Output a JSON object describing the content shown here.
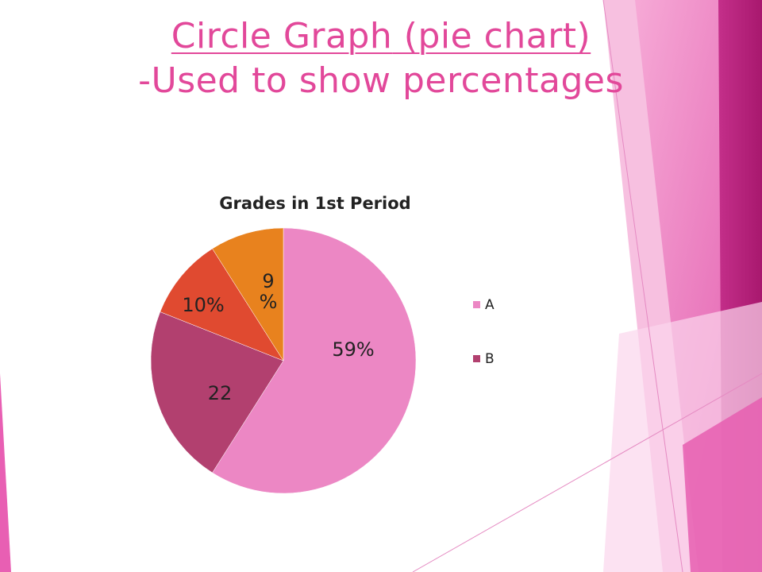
{
  "slide": {
    "title_link": "Circle Graph",
    "title_rest": " (pie chart)",
    "subtitle": "-Used to show percentages",
    "accent_color": "#e2489a"
  },
  "chart_data": {
    "type": "pie",
    "title": "Grades in 1st Period",
    "slices": [
      {
        "label": "A",
        "value": 59,
        "data_label": "59%",
        "color": "#ec87c4"
      },
      {
        "label": "B",
        "value": 22,
        "data_label": "22",
        "color": "#b2406f"
      },
      {
        "label": "",
        "value": 10,
        "data_label": "10%",
        "color": "#e04a30"
      },
      {
        "label": "",
        "value": 9,
        "data_label": "9 %",
        "color": "#e8821e"
      }
    ],
    "legend": {
      "position": "right",
      "entries": [
        "A",
        "B"
      ]
    }
  }
}
